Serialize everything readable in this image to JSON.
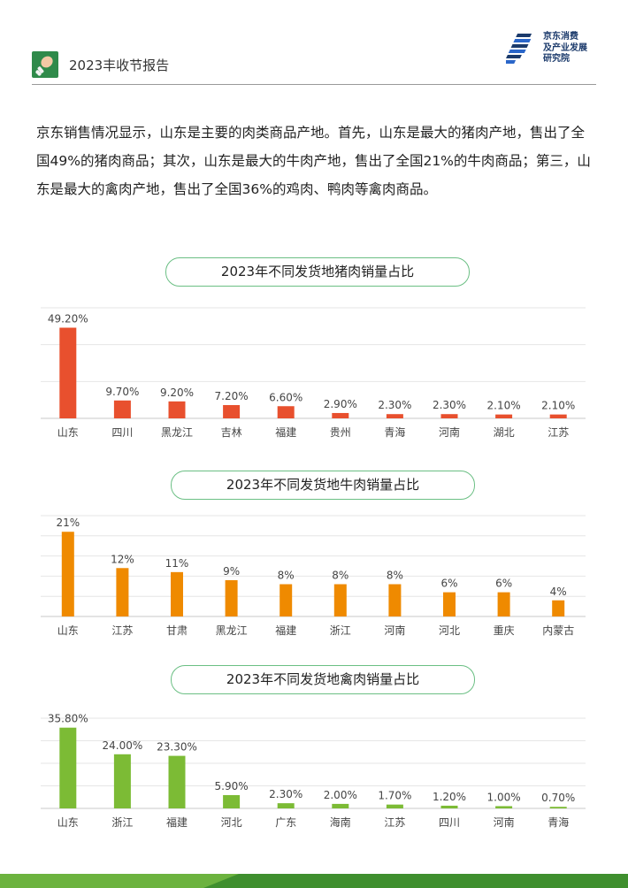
{
  "header": {
    "title": "2023丰收节报告",
    "icon": "chicken-leg-icon",
    "logo_lines": [
      "京东消费",
      "及产业发展",
      "研究院"
    ],
    "logo_icon": "jd-institute-logo-icon"
  },
  "intro": {
    "text": "京东销售情况显示，山东是主要的肉类商品产地。首先，山东是最大的猪肉产地，售出了全国49%的猪肉商品；其次，山东是最大的牛肉产地，售出了全国21%的牛肉商品；第三，山东是最大的禽肉产地，售出了全国36%的鸡肉、鸭肉等禽肉商品。"
  },
  "colors": {
    "pork": "#e8502e",
    "beef": "#ef8a00",
    "poultry": "#7cbb35",
    "title_border": "#6bbf84",
    "footer_green": "#5aa83a"
  },
  "chart_data": [
    {
      "type": "bar",
      "title": "2023年不同发货地猪肉销量占比",
      "categories": [
        "山东",
        "四川",
        "黑龙江",
        "吉林",
        "福建",
        "贵州",
        "青海",
        "河南",
        "湖北",
        "江苏"
      ],
      "values": [
        49.2,
        9.7,
        9.2,
        7.2,
        6.6,
        2.9,
        2.3,
        2.3,
        2.1,
        2.1
      ],
      "labels": [
        "49.20%",
        "9.70%",
        "9.20%",
        "7.20%",
        "6.60%",
        "2.90%",
        "2.30%",
        "2.30%",
        "2.10%",
        "2.10%"
      ],
      "ylim": [
        0,
        60
      ],
      "grid": true,
      "color": "#e8502e"
    },
    {
      "type": "bar",
      "title": "2023年不同发货地牛肉销量占比",
      "categories": [
        "山东",
        "江苏",
        "甘肃",
        "黑龙江",
        "福建",
        "浙江",
        "河南",
        "河北",
        "重庆",
        "内蒙古"
      ],
      "values": [
        21,
        12,
        11,
        9,
        8,
        8,
        8,
        6,
        6,
        4
      ],
      "labels": [
        "21%",
        "12%",
        "11%",
        "9%",
        "8%",
        "8%",
        "8%",
        "6%",
        "6%",
        "4%"
      ],
      "ylim": [
        0,
        25
      ],
      "grid": true,
      "color": "#ef8a00"
    },
    {
      "type": "bar",
      "title": "2023年不同发货地禽肉销量占比",
      "categories": [
        "山东",
        "浙江",
        "福建",
        "河北",
        "广东",
        "海南",
        "江苏",
        "四川",
        "河南",
        "青海"
      ],
      "values": [
        35.8,
        24.0,
        23.3,
        5.9,
        2.3,
        2.0,
        1.7,
        1.2,
        1.0,
        0.7
      ],
      "labels": [
        "35.80%",
        "24.00%",
        "23.30%",
        "5.90%",
        "2.30%",
        "2.00%",
        "1.70%",
        "1.20%",
        "1.00%",
        "0.70%"
      ],
      "ylim": [
        0,
        40
      ],
      "grid": true,
      "color": "#7cbb35"
    }
  ]
}
